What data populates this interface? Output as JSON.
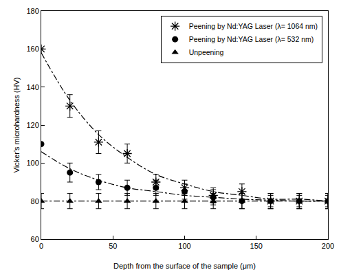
{
  "chart_data": {
    "type": "scatter",
    "x_label": "Depth from the surface of the sample (μm)",
    "y_label": "Vicker's microhardness (HV)",
    "x": [
      0,
      20,
      40,
      60,
      80,
      100,
      120,
      140,
      160,
      180,
      200
    ],
    "series": [
      {
        "name": "Peening by Nd:YAG Laser (λ= 1064 nm)",
        "color": "#000000",
        "marker": "asterisk",
        "values": [
          160,
          130,
          111,
          105,
          90,
          87,
          83,
          85,
          80,
          80,
          80
        ],
        "errors": [
          0,
          6,
          6,
          5,
          4,
          4,
          4,
          4,
          3,
          3,
          3
        ],
        "fit": [
          158,
          133,
          115,
          103,
          94,
          89,
          85,
          83,
          81,
          81,
          80
        ],
        "line_style": "dashdot"
      },
      {
        "name": "Peening by Nd:YAG Laser (λ= 532 nm)",
        "color": "#000000",
        "marker": "circle",
        "values": [
          110,
          95,
          90,
          87,
          87,
          85,
          82,
          80,
          80,
          80,
          80
        ],
        "errors": [
          0,
          5,
          4,
          4,
          4,
          4,
          4,
          4,
          4,
          4,
          4
        ],
        "fit": [
          106,
          97,
          91,
          87,
          85,
          83,
          82,
          81,
          80.5,
          80,
          80
        ],
        "line_style": "dashdot"
      },
      {
        "name": "Unpeening",
        "color": "#000000",
        "marker": "triangle-up",
        "values": [
          80,
          80,
          80,
          80,
          80,
          80,
          80,
          80,
          80,
          80,
          80
        ],
        "errors": [
          4,
          4,
          4,
          4,
          4,
          4,
          4,
          4,
          4,
          4,
          4
        ],
        "fit": [
          80,
          80,
          80,
          80,
          80,
          80,
          80,
          80,
          80,
          80,
          80
        ],
        "line_style": "dashdot"
      }
    ],
    "xlim": [
      0,
      200
    ],
    "xticks": [
      0,
      50,
      100,
      150,
      200
    ],
    "ylim": [
      60,
      180
    ],
    "yticks": [
      60,
      80,
      100,
      120,
      140,
      160,
      180
    ],
    "grid": false,
    "legend": "upper right"
  }
}
